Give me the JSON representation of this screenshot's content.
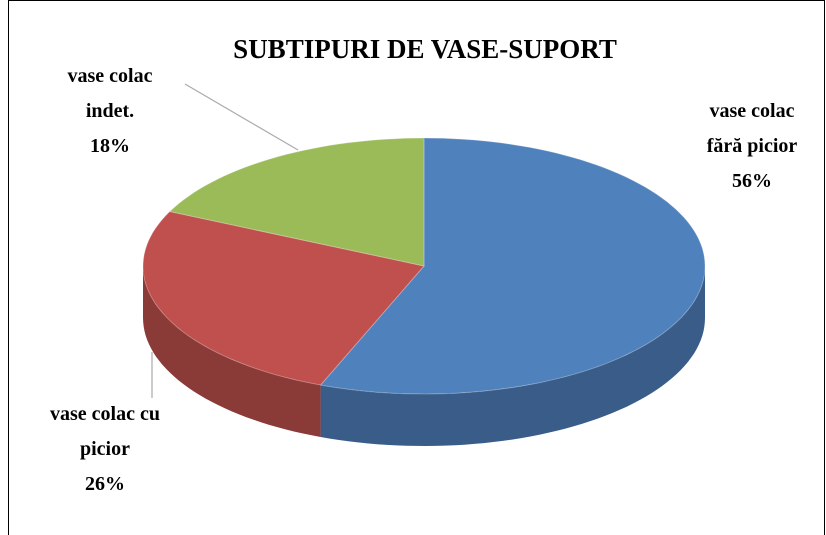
{
  "chart_data": {
    "type": "pie3d",
    "title": "SUBTIPURI DE VASE-SUPORT",
    "categories": [
      "vase colac fără picior",
      "vase colac cu picior",
      "vase colac indet."
    ],
    "values": [
      56,
      26,
      18
    ],
    "value_labels": [
      "56%",
      "26%",
      "18%"
    ],
    "colors": [
      "#4f81bd",
      "#c0504d",
      "#9bbb59"
    ]
  }
}
